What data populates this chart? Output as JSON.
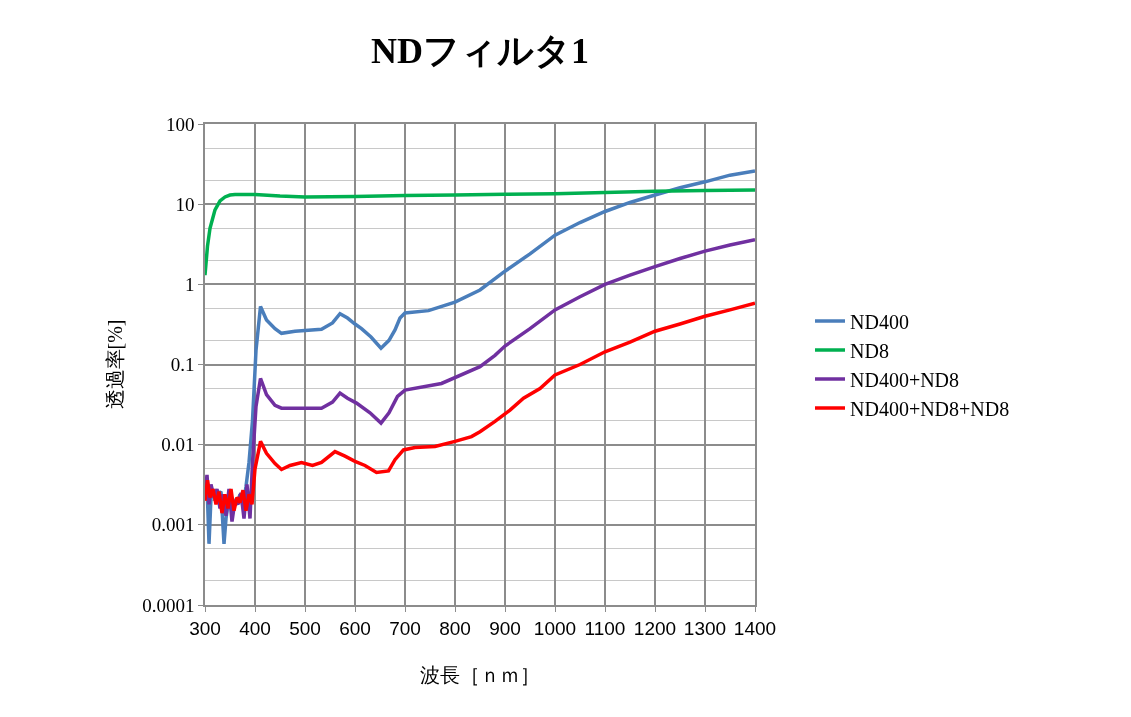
{
  "chart_data": {
    "type": "line",
    "title": "NDフィルタ1",
    "xlabel": "波長［ｎｍ］",
    "ylabel": "透過率[%]",
    "log": "y",
    "grid": true,
    "legend": "right",
    "marker": "none",
    "line_style": "solid",
    "xlim": [
      300,
      1400
    ],
    "xticks": [
      300,
      400,
      500,
      600,
      700,
      800,
      900,
      1000,
      1100,
      1200,
      1300,
      1400
    ],
    "ylim": [
      0.0001,
      100
    ],
    "yticks": [
      0.0001,
      0.001,
      0.01,
      0.1,
      1,
      10,
      100
    ],
    "series": [
      {
        "name": "ND400",
        "color": "#4a7ebb",
        "x": [
          300,
          304,
          308,
          312,
          316,
          320,
          326,
          332,
          338,
          342,
          346,
          352,
          358,
          364,
          370,
          376,
          382,
          388,
          395,
          402,
          411,
          423,
          440,
          453,
          480,
          533,
          555,
          570,
          585,
          600,
          613,
          632,
          652,
          668,
          680,
          690,
          700,
          747,
          800,
          850,
          896,
          950,
          1000,
          1050,
          1100,
          1150,
          1200,
          1250,
          1300,
          1350,
          1400
        ],
        "values": [
          0.0025,
          0.0032,
          0.00058,
          0.0022,
          0.0028,
          0.002,
          0.0024,
          0.0026,
          0.00058,
          0.0012,
          0.0018,
          0.0016,
          0.002,
          0.0018,
          0.0024,
          0.0017,
          0.003,
          0.006,
          0.02,
          0.15,
          0.53,
          0.36,
          0.28,
          0.245,
          0.26,
          0.275,
          0.33,
          0.43,
          0.38,
          0.32,
          0.28,
          0.22,
          0.16,
          0.2,
          0.27,
          0.38,
          0.44,
          0.47,
          0.6,
          0.85,
          1.4,
          2.4,
          4.1,
          5.9,
          8.1,
          10.5,
          13,
          16,
          19,
          23,
          26
        ]
      },
      {
        "name": "ND8",
        "color": "#00b050",
        "x": [
          300,
          305,
          310,
          320,
          330,
          340,
          350,
          360,
          380,
          400,
          450,
          500,
          600,
          700,
          800,
          900,
          1000,
          1100,
          1200,
          1300,
          1400
        ],
        "values": [
          1.3,
          3,
          5,
          8.5,
          11,
          12.3,
          13,
          13.2,
          13.2,
          13.2,
          12.6,
          12.3,
          12.5,
          12.8,
          13,
          13.3,
          13.5,
          14,
          14.5,
          14.8,
          15
        ]
      },
      {
        "name": "ND400+ND8",
        "color": "#7030a0",
        "x": [
          300,
          304,
          308,
          312,
          318,
          324,
          330,
          336,
          342,
          348,
          354,
          360,
          366,
          372,
          378,
          384,
          390,
          395,
          402,
          411,
          423,
          440,
          453,
          480,
          533,
          555,
          570,
          585,
          603,
          630,
          652,
          668,
          685,
          700,
          773,
          850,
          880,
          900,
          950,
          1000,
          1050,
          1100,
          1150,
          1200,
          1250,
          1300,
          1350,
          1400
        ],
        "values": [
          0.0025,
          0.0042,
          0.0018,
          0.0032,
          0.0022,
          0.0028,
          0.0016,
          0.0024,
          0.0013,
          0.0028,
          0.0011,
          0.002,
          0.0018,
          0.0025,
          0.0012,
          0.0032,
          0.0012,
          0.006,
          0.03,
          0.067,
          0.042,
          0.031,
          0.0285,
          0.0285,
          0.0285,
          0.034,
          0.044,
          0.038,
          0.033,
          0.025,
          0.0186,
          0.025,
          0.04,
          0.048,
          0.058,
          0.094,
          0.13,
          0.17,
          0.28,
          0.48,
          0.7,
          1.0,
          1.3,
          1.66,
          2.1,
          2.6,
          3.1,
          3.6
        ]
      },
      {
        "name": "ND400+ND8+ND8",
        "color": "#ff0000",
        "x": [
          300,
          305,
          310,
          316,
          322,
          328,
          334,
          340,
          346,
          352,
          358,
          364,
          370,
          376,
          382,
          388,
          394,
          400,
          411,
          423,
          440,
          453,
          470,
          493,
          515,
          533,
          560,
          580,
          600,
          620,
          643,
          667,
          680,
          697,
          720,
          760,
          800,
          833,
          850,
          880,
          910,
          937,
          970,
          1000,
          1050,
          1100,
          1150,
          1200,
          1250,
          1300,
          1350,
          1400
        ],
        "values": [
          0.002,
          0.0036,
          0.0022,
          0.0028,
          0.0018,
          0.0026,
          0.0014,
          0.0024,
          0.0016,
          0.0028,
          0.0015,
          0.0022,
          0.0019,
          0.0027,
          0.0015,
          0.0024,
          0.0018,
          0.005,
          0.011,
          0.0078,
          0.0058,
          0.0049,
          0.0055,
          0.006,
          0.0055,
          0.006,
          0.0082,
          0.0072,
          0.0062,
          0.0055,
          0.0045,
          0.0047,
          0.0065,
          0.0086,
          0.0092,
          0.0095,
          0.011,
          0.0126,
          0.0145,
          0.0195,
          0.027,
          0.038,
          0.05,
          0.074,
          0.1,
          0.144,
          0.19,
          0.26,
          0.32,
          0.4,
          0.48,
          0.58
        ]
      }
    ]
  }
}
